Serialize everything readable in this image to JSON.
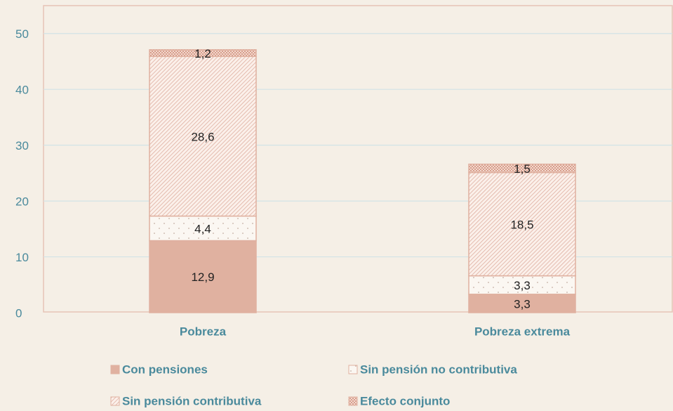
{
  "chart_data": {
    "type": "stacked_bar",
    "categories": [
      "Pobreza",
      "Pobreza extrema"
    ],
    "series": [
      {
        "name": "Con pensiones",
        "color": "#e0b1a0",
        "values": [
          12.9,
          3.3
        ],
        "value_labels": [
          "12,9",
          "3,3"
        ]
      },
      {
        "name": "Sin pensión no contributiva",
        "color": "#e0b1a0",
        "values": [
          4.4,
          3.3
        ],
        "value_labels": [
          "4,4",
          "3,3"
        ]
      },
      {
        "name": "Sin pensión contributiva",
        "color": "#e0b1a0",
        "values": [
          28.6,
          18.5
        ],
        "value_labels": [
          "28,6",
          "18,5"
        ]
      },
      {
        "name": "Efecto conjunto",
        "color": "#e0b1a0",
        "values": [
          1.2,
          1.5
        ],
        "value_labels": [
          "1,2",
          "1,5"
        ]
      }
    ],
    "ylim": [
      0,
      55
    ],
    "yticks": [
      0,
      10,
      20,
      30,
      40,
      50
    ],
    "grid": true
  }
}
